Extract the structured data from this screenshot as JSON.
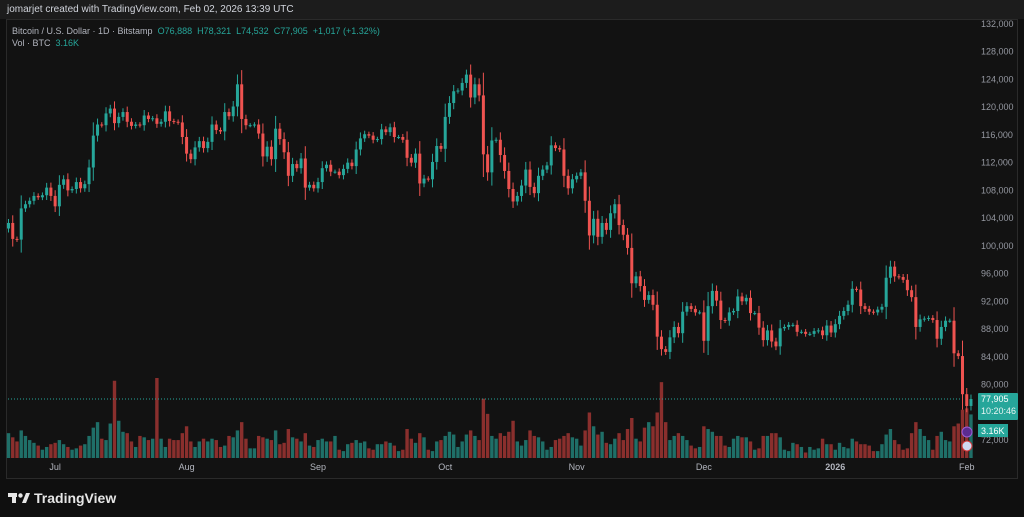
{
  "header": {
    "title": "jomarjet created with TradingView.com, Feb 02, 2026 13:39 UTC"
  },
  "legend": {
    "symbol": "Bitcoin / U.S. Dollar · 1D · Bitstamp",
    "open": "O76,888",
    "high": "H78,321",
    "low": "L74,532",
    "close": "C77,905",
    "change": "+1,017 (+1.32%)",
    "vol_label": "Vol · BTC",
    "vol_value": "3.16K"
  },
  "price_tag": {
    "price": "77,905",
    "countdown": "10:20:46",
    "volume": "3.16K"
  },
  "footer": {
    "brand": "TradingView"
  },
  "colors": {
    "up": "#26a69a",
    "down": "#ef5350",
    "vol_up": "#1f6f68",
    "vol_down": "#8a2f2d",
    "background": "#121212"
  },
  "chart_data": {
    "type": "candlestick",
    "start_date": "2025-06-20",
    "interval": "1D",
    "ylim": [
      70000,
      132000
    ],
    "y_ticks": [
      "132,000",
      "128,000",
      "124,000",
      "120,000",
      "116,000",
      "112,000",
      "108,000",
      "104,000",
      "100,000",
      "96,000",
      "92,000",
      "88,000",
      "84,000",
      "80,000",
      "72,000"
    ],
    "y_tick_values": [
      132000,
      128000,
      124000,
      120000,
      116000,
      112000,
      108000,
      104000,
      100000,
      96000,
      92000,
      88000,
      84000,
      80000,
      72000
    ],
    "x_ticks": [
      {
        "label": "Jul",
        "date": "2025-07-01"
      },
      {
        "label": "Aug",
        "date": "2025-08-01"
      },
      {
        "label": "Sep",
        "date": "2025-09-01"
      },
      {
        "label": "Oct",
        "date": "2025-10-01"
      },
      {
        "label": "Nov",
        "date": "2025-11-01"
      },
      {
        "label": "Dec",
        "date": "2025-12-01"
      },
      {
        "label": "2026",
        "date": "2026-01-01"
      },
      {
        "label": "Feb",
        "date": "2026-02-01"
      }
    ],
    "close_usd_thousands": [
      103.3,
      101.0,
      100.9,
      105.4,
      106.0,
      106.5,
      107.2,
      107.0,
      107.3,
      108.4,
      107.2,
      105.7,
      108.8,
      109.6,
      108.0,
      108.2,
      109.2,
      108.3,
      108.9,
      111.3,
      115.9,
      117.5,
      117.4,
      119.1,
      119.8,
      117.7,
      118.6,
      119.3,
      117.9,
      117.3,
      117.5,
      117.4,
      118.8,
      118.3,
      118.4,
      117.6,
      117.9,
      119.4,
      118.0,
      117.9,
      117.8,
      115.7,
      113.3,
      112.5,
      114.2,
      115.1,
      114.1,
      115.0,
      117.5,
      116.7,
      116.5,
      119.3,
      118.7,
      120.1,
      123.3,
      118.3,
      117.4,
      117.4,
      117.5,
      116.2,
      112.9,
      114.3,
      112.5,
      116.9,
      115.4,
      113.5,
      110.1,
      111.8,
      111.2,
      112.6,
      108.4,
      108.8,
      108.3,
      109.2,
      111.2,
      111.7,
      110.7,
      110.7,
      110.2,
      111.1,
      112.0,
      111.5,
      113.9,
      115.5,
      116.1,
      115.9,
      115.3,
      115.4,
      116.8,
      116.4,
      117.1,
      115.7,
      115.7,
      115.3,
      112.7,
      112.0,
      113.3,
      109.0,
      109.7,
      109.6,
      112.1,
      114.4,
      114.0,
      118.6,
      120.6,
      122.3,
      122.4,
      123.5,
      124.7,
      121.4,
      123.3,
      121.7,
      113.2,
      110.6,
      115.2,
      115.3,
      113.1,
      110.8,
      108.2,
      106.4,
      107.2,
      108.7,
      111.0,
      108.5,
      107.6,
      110.1,
      111.0,
      111.6,
      114.5,
      114.1,
      113.9,
      110.1,
      108.3,
      109.6,
      110.1,
      110.6,
      106.5,
      101.5,
      103.9,
      101.3,
      103.3,
      102.3,
      104.7,
      106.0,
      103.0,
      101.6,
      99.7,
      94.6,
      95.6,
      94.2,
      92.2,
      92.9,
      91.5,
      86.9,
      85.1,
      84.7,
      86.8,
      88.3,
      87.4,
      90.5,
      91.3,
      90.9,
      90.4,
      90.4,
      86.3,
      91.3,
      93.5,
      92.1,
      89.3,
      89.2,
      90.4,
      90.6,
      92.7,
      92.0,
      92.5,
      90.3,
      90.3,
      88.2,
      86.4,
      87.8,
      86.2,
      85.5,
      88.1,
      88.3,
      88.6,
      88.6,
      87.6,
      87.6,
      87.3,
      87.3,
      87.7,
      87.8,
      87.1,
      88.5,
      87.5,
      88.7,
      89.9,
      90.6,
      91.5,
      93.8,
      93.7,
      91.3,
      90.9,
      90.5,
      90.4,
      90.8,
      91.2,
      95.4,
      97.0,
      95.6,
      95.5,
      95.1,
      93.6,
      92.6,
      88.3,
      89.4,
      89.5,
      89.6,
      89.3,
      86.6,
      88.3,
      89.2,
      89.2,
      84.5,
      84.1,
      78.6,
      76.9,
      77.9
    ],
    "volume_k_btc": [
      1.8,
      1.5,
      1.2,
      2.0,
      1.6,
      1.3,
      1.1,
      0.9,
      0.6,
      0.8,
      1.0,
      1.1,
      1.3,
      1.0,
      0.8,
      0.6,
      0.7,
      0.9,
      1.0,
      1.6,
      2.2,
      2.6,
      1.4,
      1.3,
      2.5,
      5.6,
      2.7,
      1.9,
      1.8,
      1.2,
      0.8,
      1.6,
      1.5,
      1.3,
      1.4,
      5.8,
      1.4,
      0.8,
      1.4,
      1.3,
      1.3,
      1.8,
      2.3,
      1.2,
      0.8,
      1.2,
      1.4,
      1.2,
      1.4,
      1.3,
      0.8,
      0.9,
      1.6,
      1.5,
      2.0,
      2.6,
      1.4,
      0.7,
      0.7,
      1.6,
      1.5,
      1.4,
      1.3,
      2.0,
      1.0,
      1.1,
      2.1,
      1.5,
      1.4,
      1.2,
      1.8,
      0.9,
      0.8,
      1.3,
      1.4,
      1.2,
      1.2,
      1.6,
      0.6,
      0.5,
      1.0,
      1.1,
      1.3,
      1.1,
      1.2,
      0.7,
      0.6,
      1.0,
      1.0,
      1.2,
      1.1,
      0.9,
      0.5,
      0.6,
      2.1,
      1.4,
      1.1,
      1.8,
      1.5,
      0.6,
      0.5,
      1.2,
      1.3,
      1.6,
      1.9,
      1.7,
      0.8,
      1.2,
      1.7,
      2.0,
      1.6,
      1.3,
      4.3,
      3.2,
      1.6,
      1.4,
      1.8,
      1.6,
      1.9,
      2.7,
      1.2,
      0.9,
      1.3,
      2.0,
      1.6,
      1.5,
      1.2,
      0.6,
      0.8,
      1.3,
      1.4,
      1.6,
      1.8,
      1.5,
      1.4,
      0.9,
      2.0,
      3.3,
      2.3,
      1.7,
      1.9,
      1.1,
      1.0,
      1.4,
      1.8,
      1.3,
      2.1,
      2.9,
      1.4,
      1.2,
      2.2,
      2.6,
      2.3,
      3.3,
      5.5,
      2.6,
      1.3,
      1.6,
      1.8,
      1.6,
      1.3,
      0.9,
      0.7,
      0.8,
      2.3,
      2.1,
      1.9,
      1.6,
      1.6,
      0.9,
      0.8,
      1.4,
      1.6,
      1.5,
      1.5,
      1.2,
      0.6,
      0.7,
      1.6,
      1.6,
      1.8,
      1.8,
      1.5,
      0.6,
      0.5,
      1.1,
      1.0,
      0.8,
      0.4,
      0.8,
      0.6,
      0.7,
      1.4,
      1.0,
      1.0,
      0.6,
      1.1,
      0.8,
      0.7,
      1.4,
      1.2,
      1.0,
      1.0,
      0.9,
      0.5,
      0.5,
      1.0,
      1.7,
      2.1,
      1.3,
      1.0,
      0.6,
      0.7,
      1.8,
      2.6,
      2.1,
      1.6,
      1.3,
      0.6,
      1.6,
      1.9,
      1.3,
      1.2,
      2.3,
      2.5,
      3.5,
      3.6,
      3.16
    ],
    "last_price": 77905,
    "grid": false
  }
}
